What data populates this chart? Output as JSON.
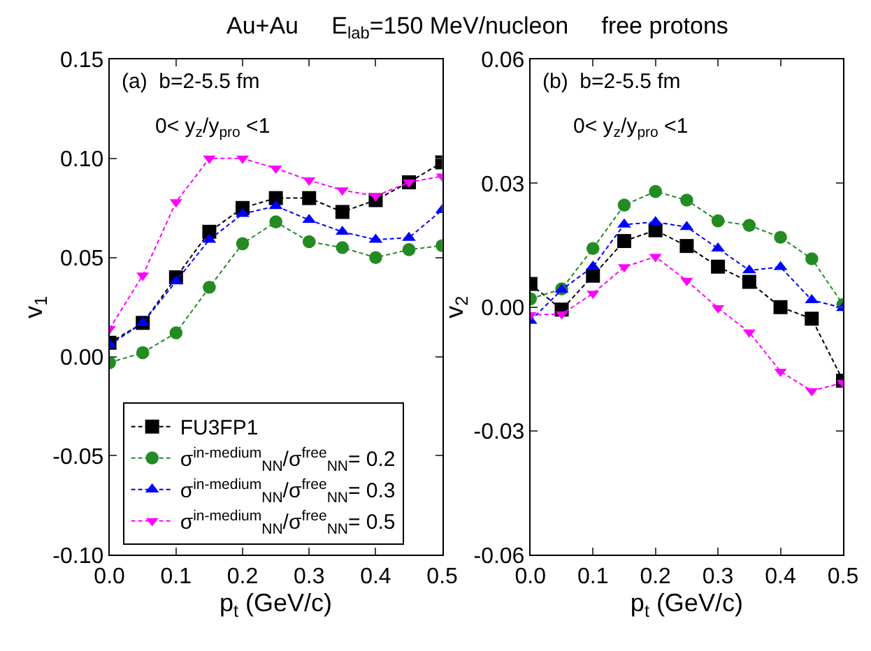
{
  "chart_data": [
    {
      "type": "line",
      "title": "Au+Au     E$_{lab}$=150 MeV/nucleon     free protons",
      "xlabel": "p$_{t}$ (GeV/c)",
      "ylabel": "v$_{1}$",
      "annotations": [
        "(a)  b=2-5.5 fm",
        "0< y$_{z}$/y$_{pro}$ <1"
      ],
      "x": [
        0,
        0.05,
        0.1,
        0.15,
        0.2,
        0.25,
        0.3,
        0.35,
        0.4,
        0.45,
        0.5
      ],
      "xlim": [
        0,
        0.5
      ],
      "xticks": [
        {
          "value": 0,
          "label": "0.0"
        },
        0.1,
        0.2,
        0.3,
        0.4,
        0.5
      ],
      "ylim": [
        -0.1,
        0.15
      ],
      "yticks": [
        {
          "value": -0.1,
          "label": "-0.10"
        },
        -0.05,
        {
          "value": 0,
          "label": "0.00"
        },
        0.05,
        {
          "value": 0.1,
          "label": "0.10"
        },
        0.15
      ],
      "legend": "bottom left",
      "line_style": "dashed",
      "series": [
        {
          "name": "FU3FP1",
          "color": "#000000",
          "marker": "square",
          "values": [
            0.007,
            0.017,
            0.04,
            0.063,
            0.075,
            0.08,
            0.08,
            0.073,
            0.079,
            0.088,
            0.098
          ]
        },
        {
          "name": "σ$^{in-medium}$$_{NN}$/σ$^{free}$$_{NN}$= 0.2",
          "color": "#228b22",
          "marker": "circle",
          "values": [
            -0.003,
            0.002,
            0.012,
            0.035,
            0.057,
            0.068,
            0.058,
            0.055,
            0.05,
            0.054,
            0.056
          ]
        },
        {
          "name": "σ$^{in-medium}$$_{NN}$/σ$^{free}$$_{NN}$= 0.3",
          "color": "#0000ff",
          "marker": "triangle",
          "values": [
            0.006,
            0.017,
            0.038,
            0.059,
            0.072,
            0.076,
            0.069,
            0.063,
            0.059,
            0.06,
            0.074
          ]
        },
        {
          "name": "σ$^{in-medium}$$_{NN}$/σ$^{free}$$_{NN}$= 0.5",
          "color": "#ff00ff",
          "marker": "triangle-down",
          "values": [
            0.014,
            0.041,
            0.078,
            0.1,
            0.1,
            0.095,
            0.089,
            0.084,
            0.081,
            0.088,
            0.091
          ]
        }
      ]
    },
    {
      "type": "line",
      "xlabel": "p$_{t}$ (GeV/c)",
      "ylabel": "v$_{2}$",
      "annotations": [
        "(b)  b=2-5.5 fm",
        "0< y$_{z}$/y$_{pro}$ <1"
      ],
      "x": [
        0,
        0.05,
        0.1,
        0.15,
        0.2,
        0.25,
        0.3,
        0.35,
        0.4,
        0.45,
        0.5
      ],
      "xlim": [
        0,
        0.5
      ],
      "xticks": [
        {
          "value": 0,
          "label": "0.0"
        },
        0.1,
        0.2,
        0.3,
        0.4,
        0.5
      ],
      "ylim": [
        -0.06,
        0.06
      ],
      "yticks": [
        -0.06,
        -0.03,
        {
          "value": 0,
          "label": "0.00"
        },
        0.03,
        0.06
      ],
      "line_style": "dashed",
      "series": [
        {
          "color": "#000000",
          "marker": "square",
          "values": [
            0.0056,
            -0.0006,
            0.0076,
            0.016,
            0.0186,
            0.0148,
            0.0098,
            0.0061,
            0.0,
            -0.0028,
            -0.0178
          ]
        },
        {
          "color": "#228b22",
          "marker": "circle",
          "values": [
            0.002,
            0.0044,
            0.0142,
            0.0247,
            0.028,
            0.0259,
            0.0209,
            0.0198,
            0.0169,
            0.0117,
            0.0006
          ]
        },
        {
          "color": "#0000ff",
          "marker": "triangle",
          "values": [
            -0.0033,
            0.0042,
            0.0098,
            0.02,
            0.0206,
            0.0194,
            0.0142,
            0.0089,
            0.0097,
            0.0017,
            -0.0002
          ]
        },
        {
          "color": "#ff00ff",
          "marker": "triangle-down",
          "values": [
            -0.0019,
            -0.0017,
            0.0033,
            0.0097,
            0.0122,
            0.0064,
            -0.0002,
            -0.0061,
            -0.0156,
            -0.0203,
            -0.0183
          ]
        }
      ]
    }
  ]
}
